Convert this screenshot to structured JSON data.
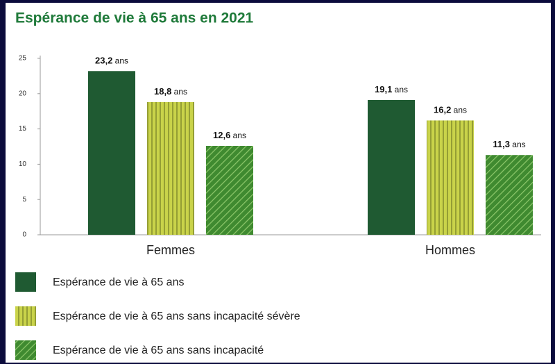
{
  "chart_data": {
    "type": "bar",
    "title": "Espérance de vie à 65 ans en 2021",
    "categories": [
      "Femmes",
      "Hommes"
    ],
    "series": [
      {
        "name": "Espérance de vie à 65 ans",
        "color": "#1f5a32",
        "pattern": "solid",
        "values": [
          23.2,
          19.1
        ],
        "value_labels": [
          "23,2 ans",
          "19,1 ans"
        ]
      },
      {
        "name": "Espérance de vie à 65 ans sans incapacité sévère",
        "color": "#c9d34a",
        "pattern": "vertical",
        "values": [
          18.8,
          16.2
        ],
        "value_labels": [
          "18,8 ans",
          "16,2 ans"
        ]
      },
      {
        "name": "Espérance de vie à 65 ans sans incapacité",
        "color": "#4f9a3c",
        "pattern": "diagonal",
        "values": [
          12.6,
          11.3
        ],
        "value_labels": [
          "12,6 ans",
          "11,3 ans"
        ]
      }
    ],
    "ylim": [
      0,
      25
    ],
    "yticks": [
      0,
      5,
      10,
      15,
      20,
      25
    ],
    "grid": false
  }
}
